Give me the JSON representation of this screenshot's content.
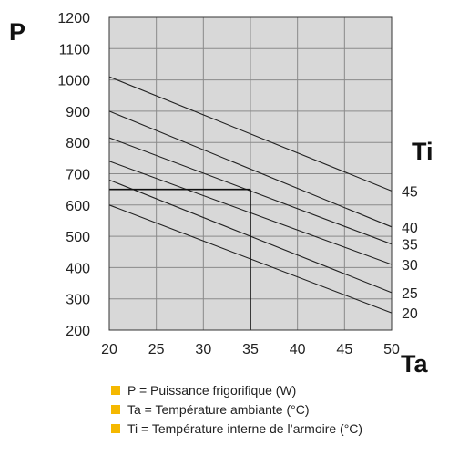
{
  "chart_data": {
    "type": "line",
    "y_axis_letter": "P",
    "x_axis_letter": "Ta",
    "series_axis_letter": "Ti",
    "x_ticks": [
      "20",
      "25",
      "30",
      "35",
      "40",
      "45",
      "50"
    ],
    "y_ticks": [
      "200",
      "300",
      "400",
      "500",
      "600",
      "700",
      "800",
      "900",
      "1000",
      "1100",
      "1200"
    ],
    "xlim": [
      20,
      50
    ],
    "ylim": [
      200,
      1200
    ],
    "grid": true,
    "series": [
      {
        "name": "45",
        "points": [
          [
            20,
            1010
          ],
          [
            50,
            645
          ]
        ]
      },
      {
        "name": "40",
        "points": [
          [
            20,
            900
          ],
          [
            50,
            530
          ]
        ]
      },
      {
        "name": "35",
        "points": [
          [
            20,
            815
          ],
          [
            50,
            475
          ]
        ]
      },
      {
        "name": "30",
        "points": [
          [
            20,
            740
          ],
          [
            50,
            410
          ]
        ]
      },
      {
        "name": "25",
        "points": [
          [
            20,
            680
          ],
          [
            50,
            320
          ]
        ]
      },
      {
        "name": "20",
        "points": [
          [
            20,
            600
          ],
          [
            50,
            255
          ]
        ]
      }
    ],
    "reference_lines": [
      {
        "from": [
          20,
          650
        ],
        "to": [
          35,
          650
        ]
      },
      {
        "from": [
          35,
          650
        ],
        "to": [
          35,
          200
        ]
      }
    ],
    "legend_color": "#f5b800",
    "legend": [
      "P = Puissance frigorifique (W)",
      "Ta = Température ambiante (°C)",
      "Ti = Température interne de l’armoire (°C)"
    ]
  }
}
